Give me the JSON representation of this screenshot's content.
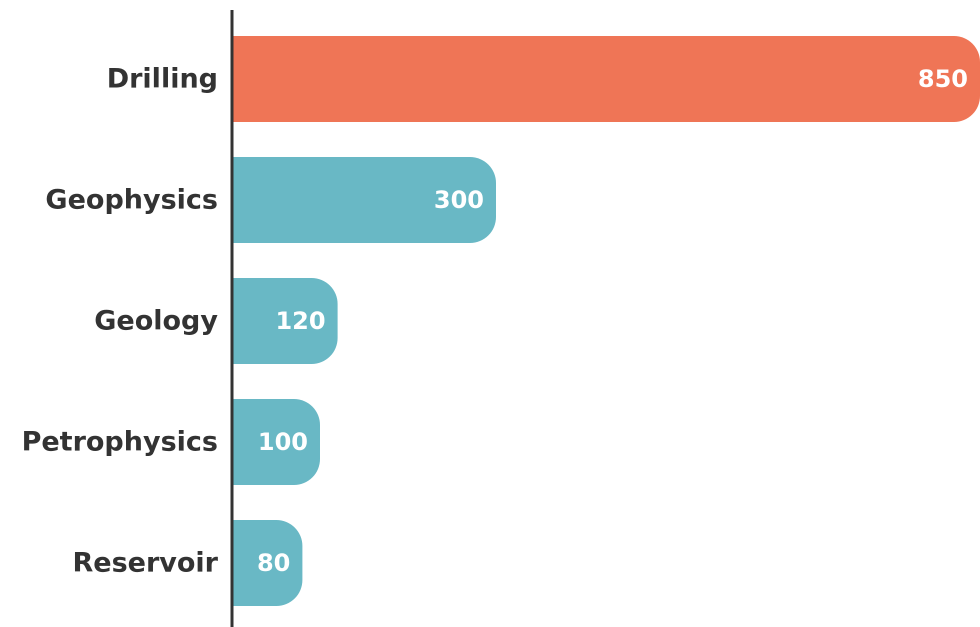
{
  "chart_data": {
    "type": "bar",
    "orientation": "horizontal",
    "categories": [
      "Drilling",
      "Geophysics",
      "Geology",
      "Petrophysics",
      "Reservoir"
    ],
    "values": [
      850,
      300,
      120,
      100,
      80
    ],
    "value_labels": [
      "850",
      "300",
      "120",
      "100",
      "80"
    ],
    "title": "",
    "xlabel": "",
    "ylabel": "",
    "xlim": [
      0,
      850
    ],
    "grid": false,
    "legend": "none",
    "colors": {
      "highlight": "#EF7556",
      "default": "#69B8C5",
      "axis": "#333333",
      "label": "#333333",
      "value_text": "#ffffff"
    },
    "highlight_index": 0
  }
}
